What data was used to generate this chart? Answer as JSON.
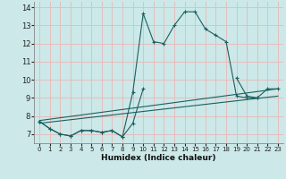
{
  "title": "",
  "xlabel": "Humidex (Indice chaleur)",
  "bg_color": "#cce8e8",
  "line_color": "#1a6060",
  "grid_color": "#e8b8b8",
  "xlim": [
    -0.5,
    23.5
  ],
  "ylim": [
    6.5,
    14.3
  ],
  "xticks": [
    0,
    1,
    2,
    3,
    4,
    5,
    6,
    7,
    8,
    9,
    10,
    11,
    12,
    13,
    14,
    15,
    16,
    17,
    18,
    19,
    20,
    21,
    22,
    23
  ],
  "yticks": [
    7,
    8,
    9,
    10,
    11,
    12,
    13,
    14
  ],
  "line1_x": [
    0,
    1,
    2,
    3,
    4,
    5,
    6,
    7,
    8,
    9,
    10,
    11,
    12,
    13,
    14,
    15,
    16,
    17,
    18,
    19,
    20,
    21
  ],
  "line1_y": [
    7.7,
    7.3,
    7.0,
    6.9,
    7.2,
    7.2,
    7.1,
    7.2,
    6.85,
    9.3,
    13.65,
    12.1,
    12.0,
    13.0,
    13.75,
    13.75,
    12.8,
    12.45,
    12.1,
    9.1,
    9.0,
    9.0
  ],
  "line2_seg1_x": [
    0,
    1,
    2,
    3,
    4,
    5,
    6,
    7,
    8,
    9,
    10
  ],
  "line2_seg1_y": [
    7.7,
    7.3,
    7.0,
    6.9,
    7.2,
    7.2,
    7.1,
    7.2,
    6.85,
    7.6,
    9.5
  ],
  "line2_seg2_x": [
    19,
    20,
    21,
    22,
    23
  ],
  "line2_seg2_y": [
    10.1,
    9.1,
    9.0,
    9.5,
    9.5
  ],
  "line3_x": [
    0,
    23
  ],
  "line3_y": [
    7.6,
    9.1
  ],
  "line4_x": [
    0,
    23
  ],
  "line4_y": [
    7.75,
    9.5
  ]
}
